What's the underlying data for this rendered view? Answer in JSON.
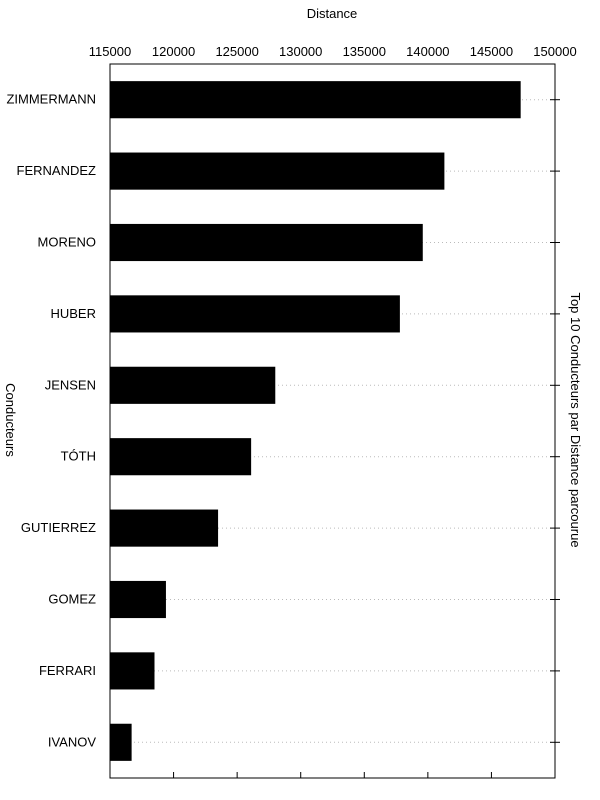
{
  "chart_data": {
    "type": "bar",
    "orientation": "horizontal",
    "title": "Top 10 Conducteurs par Distance parcourue",
    "xlabel": "Distance",
    "ylabel": "Conducteurs",
    "xlim": [
      115000,
      150000
    ],
    "x_ticks": [
      115000,
      120000,
      125000,
      130000,
      135000,
      140000,
      145000,
      150000
    ],
    "x_axis_position": "top",
    "grid": "horizontal dotted",
    "bar_color": "#000000",
    "categories": [
      "ZIMMERMANN",
      "FERNANDEZ",
      "MORENO",
      "HUBER",
      "JENSEN",
      "TÓTH",
      "GUTIERREZ",
      "GOMEZ",
      "FERRARI",
      "IVANOV"
    ],
    "values": [
      147300,
      141300,
      139600,
      137800,
      128000,
      126100,
      123500,
      119400,
      118500,
      116700
    ]
  }
}
